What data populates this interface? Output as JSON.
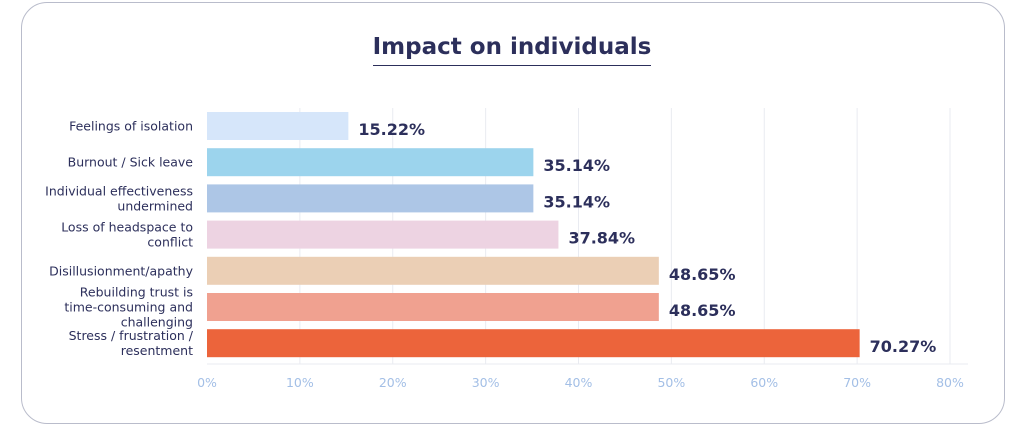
{
  "chart_data": {
    "type": "bar",
    "orientation": "horizontal",
    "title": "Impact on individuals",
    "categories": [
      "Feelings of isolation",
      "Burnout / Sick leave",
      "Individual effectiveness undermined",
      "Loss of headspace to conflict",
      "Disillusionment/apathy",
      "Rebuilding trust is time-consuming and challenging",
      "Stress / frustration / resentment"
    ],
    "category_lines": [
      [
        "Feelings of isolation"
      ],
      [
        "Burnout / Sick leave"
      ],
      [
        "Individual effectiveness",
        "undermined"
      ],
      [
        "Loss of headspace to",
        "conflict"
      ],
      [
        "Disillusionment/apathy"
      ],
      [
        "Rebuilding trust is",
        "time-consuming and",
        "challenging"
      ],
      [
        "Stress / frustration /",
        "resentment"
      ]
    ],
    "values": [
      15.22,
      35.14,
      35.14,
      37.84,
      48.65,
      48.65,
      70.27
    ],
    "value_labels": [
      "15.22%",
      "35.14%",
      "35.14%",
      "37.84%",
      "48.65%",
      "48.65%",
      "70.27%"
    ],
    "colors": [
      "#d6e6fa",
      "#9cd4ed",
      "#adc6e6",
      "#edd3e2",
      "#ebcfb5",
      "#f0a190",
      "#ec643b"
    ],
    "xlim": [
      0,
      80
    ],
    "xticks": [
      0,
      10,
      20,
      30,
      40,
      50,
      60,
      70,
      80
    ],
    "xtick_labels": [
      "0%",
      "10%",
      "20%",
      "30%",
      "40%",
      "50%",
      "60%",
      "70%",
      "80%"
    ],
    "xlabel": "",
    "ylabel": "",
    "grid": "vertical",
    "gridline_color": "#e9ebf1",
    "tick_color": "#a3bfe6"
  }
}
